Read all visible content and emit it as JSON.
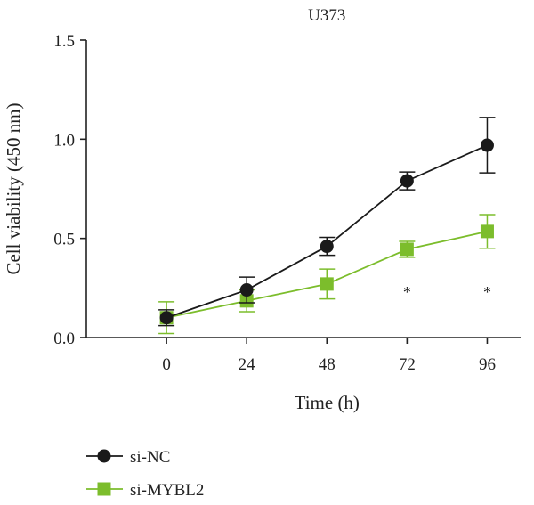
{
  "chart_data": {
    "type": "line",
    "title": "U373",
    "xlabel": "Time (h)",
    "ylabel": "Cell viability (450 nm)",
    "x": [
      0,
      24,
      48,
      72,
      96
    ],
    "x_tick_labels": [
      "0",
      "24",
      "48",
      "72",
      "96"
    ],
    "xlim": [
      -24,
      106
    ],
    "ylim": [
      0,
      1.5
    ],
    "y_ticks": [
      0.0,
      0.5,
      1.0,
      1.5
    ],
    "y_tick_labels": [
      "0.0",
      "0.5",
      "1.0",
      "1.5"
    ],
    "grid": false,
    "legend_position": "bottom-left",
    "series": [
      {
        "name": "si-NC",
        "marker": "circle",
        "color": "#1a1a1a",
        "values": [
          0.1,
          0.24,
          0.46,
          0.79,
          0.97
        ],
        "error": [
          0.04,
          0.065,
          0.045,
          0.045,
          0.14
        ]
      },
      {
        "name": "si-MYBL2",
        "marker": "square",
        "color": "#7cbd2c",
        "values": [
          0.1,
          0.185,
          0.27,
          0.445,
          0.535
        ],
        "error": [
          0.08,
          0.055,
          0.075,
          0.04,
          0.085
        ]
      }
    ],
    "annotations": [
      {
        "x": 72,
        "text": "*"
      },
      {
        "x": 96,
        "text": "*"
      }
    ]
  }
}
